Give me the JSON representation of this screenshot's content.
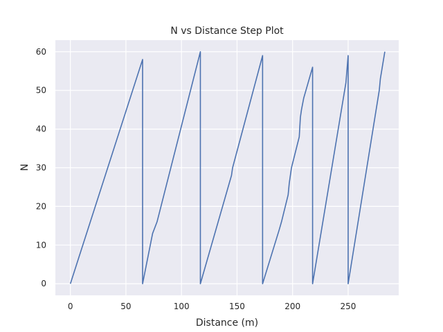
{
  "chart_data": {
    "type": "line",
    "title": "N vs Distance Step Plot",
    "xlabel": "Distance (m)",
    "ylabel": "N",
    "xlim": [
      -13.5,
      295.5
    ],
    "ylim": [
      -3,
      63
    ],
    "xticks": [
      0,
      50,
      100,
      150,
      200,
      250
    ],
    "yticks": [
      0,
      10,
      20,
      30,
      40,
      50,
      60
    ],
    "grid": true,
    "legend": "none",
    "colors": {
      "line": "#4c72b0",
      "background": "#eaeaf2",
      "grid": "#ffffff"
    },
    "series": [
      {
        "x": [
          0,
          65,
          65,
          74,
          78,
          117,
          117,
          145,
          146,
          173,
          173,
          188,
          190,
          196,
          197,
          199,
          206,
          207,
          208,
          210,
          218,
          218,
          248,
          250,
          250,
          278,
          279,
          283
        ],
        "y": [
          0,
          58,
          0,
          13,
          16,
          60,
          0,
          28,
          30,
          59,
          0,
          14,
          16,
          23,
          26,
          30,
          38,
          43,
          45,
          48,
          56,
          0,
          52,
          59,
          0,
          50,
          53,
          60
        ]
      }
    ]
  }
}
